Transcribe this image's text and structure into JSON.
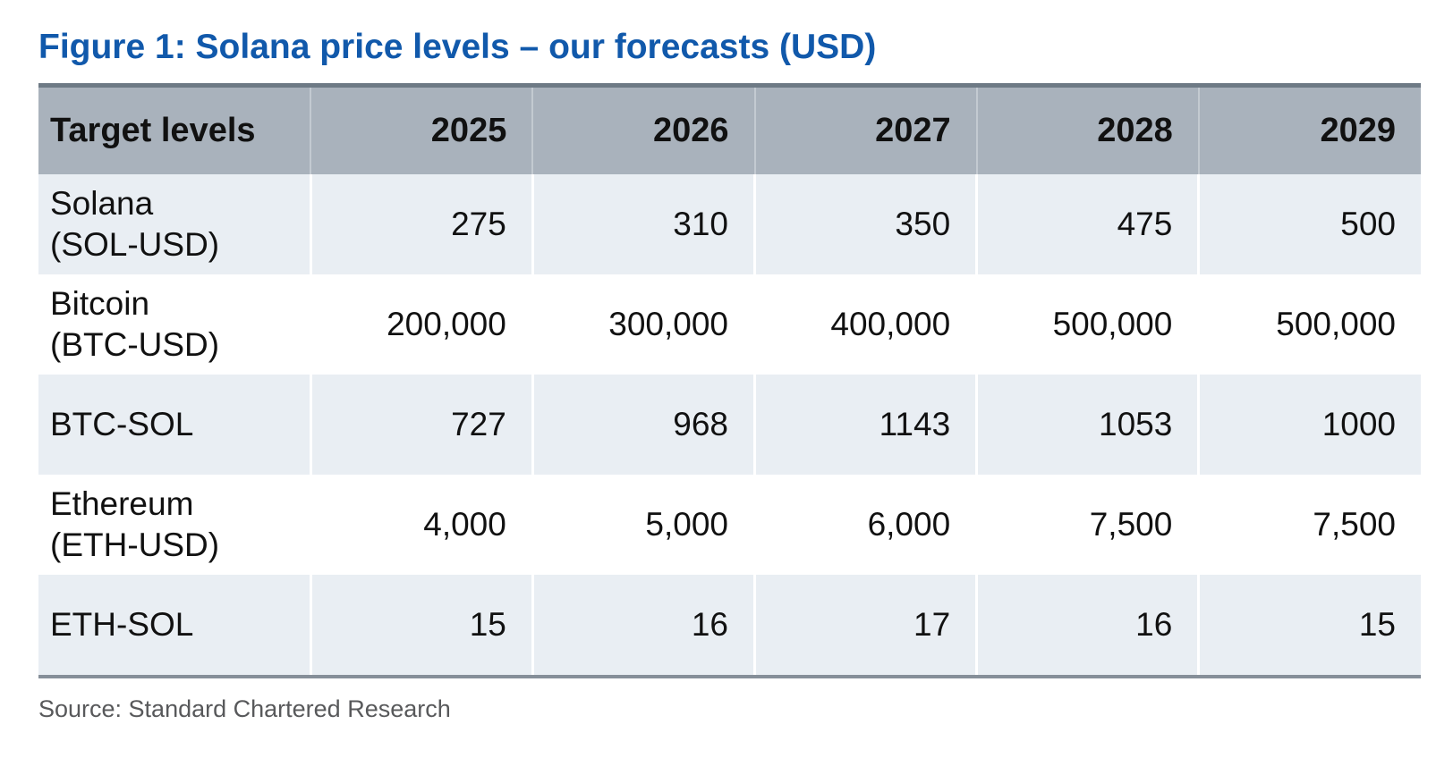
{
  "figure": {
    "title": "Figure 1: Solana price levels – our forecasts (USD)",
    "source": "Source: Standard Chartered Research"
  },
  "chart_data": {
    "type": "table",
    "title": "Figure 1: Solana price levels – our forecasts (USD)",
    "columns": [
      "Target levels",
      "2025",
      "2026",
      "2027",
      "2028",
      "2029"
    ],
    "rows": [
      {
        "label_line1": "Solana",
        "label_line2": "(SOL-USD)",
        "values": [
          "275",
          "310",
          "350",
          "475",
          "500"
        ]
      },
      {
        "label_line1": "Bitcoin",
        "label_line2": "(BTC-USD)",
        "values": [
          "200,000",
          "300,000",
          "400,000",
          "500,000",
          "500,000"
        ]
      },
      {
        "label_line1": "BTC-SOL",
        "values": [
          "727",
          "968",
          "1143",
          "1053",
          "1000"
        ]
      },
      {
        "label_line1": "Ethereum",
        "label_line2": "(ETH-USD)",
        "values": [
          "4,000",
          "5,000",
          "6,000",
          "7,500",
          "7,500"
        ]
      },
      {
        "label_line1": "ETH-SOL",
        "values": [
          "15",
          "16",
          "17",
          "16",
          "15"
        ]
      }
    ],
    "source": "Source: Standard Chartered Research",
    "layout_hints": {
      "shaded_row_indexes": [
        0,
        2,
        4
      ],
      "value_alignment": "right",
      "label_alignment": "left"
    }
  },
  "colors": {
    "title_blue": "#1159ab",
    "header_bg": "#a9b2bc",
    "header_top_border": "#6e7a85",
    "header_separator": "#c3cad1",
    "row_shade": "#e9eef3",
    "table_bottom_border": "#868f99",
    "body_text": "#111111",
    "source_text": "#58595b"
  }
}
